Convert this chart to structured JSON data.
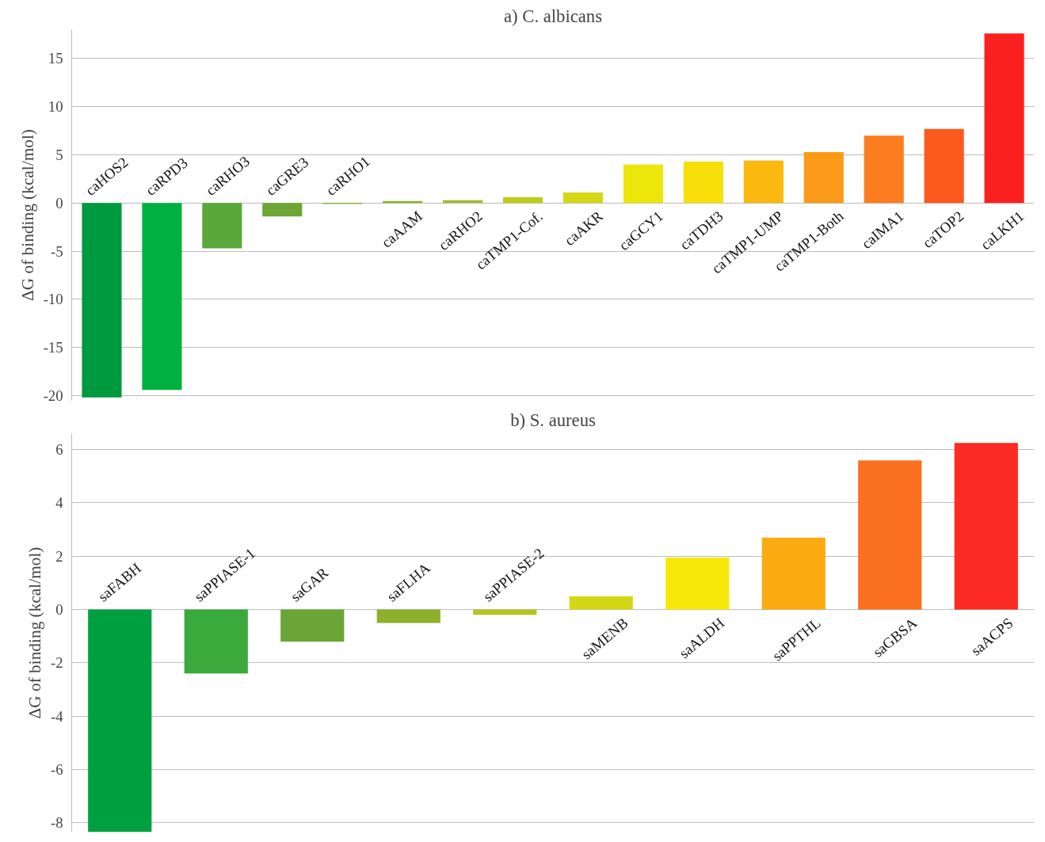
{
  "chart_data": [
    {
      "type": "bar",
      "title": "a) C. albicans",
      "ylabel": "ΔG of binding (kcal/mol)",
      "grid": "y",
      "tick_labels": "y",
      "categories": [
        "caHOS2",
        "caRPD3",
        "caRHO3",
        "caGRE3",
        "caRHO1",
        "caAAM",
        "caRHO2",
        "caTMP1-Cof.",
        "caAKR",
        "caGCY1",
        "caTDH3",
        "caTMP1-UMP",
        "caTMP1-Both",
        "caIMA1",
        "caTOP2",
        "caLKH1"
      ],
      "values": [
        -20.2,
        -19.4,
        -4.7,
        -1.4,
        -0.1,
        0.2,
        0.3,
        0.6,
        1.1,
        4.0,
        4.3,
        4.4,
        5.3,
        7.0,
        7.7,
        17.6
      ],
      "colors": [
        "#009a3e",
        "#00b140",
        "#5aa83a",
        "#6ea535",
        "#7faa2e",
        "#8fb52a",
        "#a0bd25",
        "#bccc1a",
        "#d4d814",
        "#ede60a",
        "#f7e00a",
        "#fbb80e",
        "#fb9a18",
        "#fb7d20",
        "#fb5a1e",
        "#fb2020"
      ],
      "ylim": [
        -20.5,
        18
      ],
      "yticks": [
        -20,
        -15,
        -10,
        -5,
        0,
        5,
        10,
        15
      ]
    },
    {
      "type": "bar",
      "title": "b) S. aureus",
      "ylabel": "ΔG of binding (kcal/mol)",
      "grid": "y",
      "tick_labels": "y",
      "categories": [
        "saFABH",
        "saPPIASE-1",
        "saGAR",
        "saFLHA",
        "saPPIASE-2",
        "saMENB",
        "saALDH",
        "saPPTHL",
        "saGBSA",
        "saACPS"
      ],
      "values": [
        -8.35,
        -2.4,
        -1.2,
        -0.5,
        -0.2,
        0.5,
        1.95,
        2.7,
        5.6,
        6.25
      ],
      "colors": [
        "#00a040",
        "#3aaa3c",
        "#6aa535",
        "#8eb02c",
        "#b4c51e",
        "#d4d814",
        "#f7e80a",
        "#fbaa12",
        "#fb7020",
        "#fb2a22"
      ],
      "ylim": [
        -8.35,
        6.6
      ],
      "yticks": [
        -8,
        -6,
        -4,
        -2,
        0,
        2,
        4,
        6
      ]
    }
  ]
}
